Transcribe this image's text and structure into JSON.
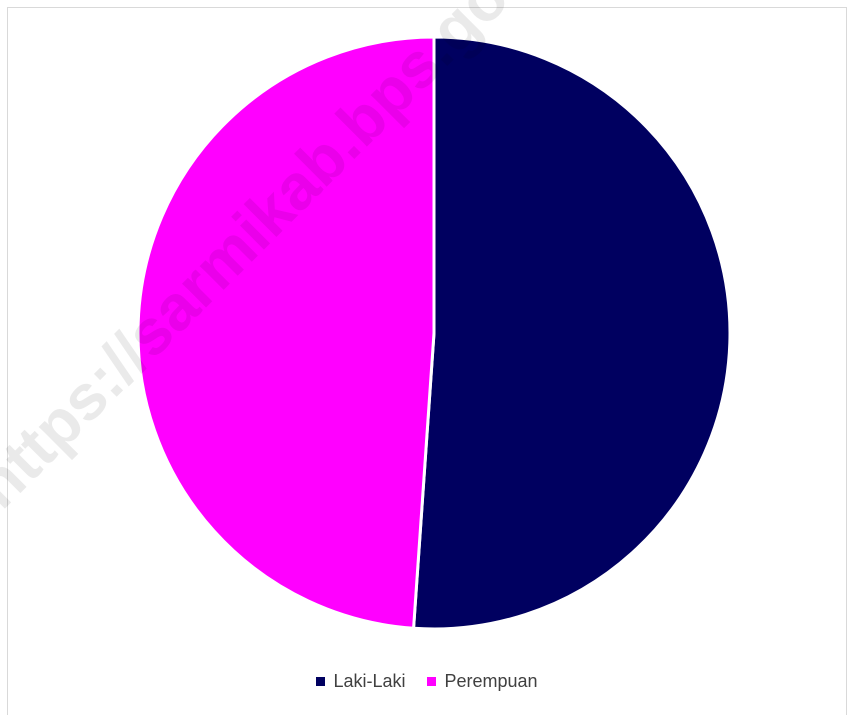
{
  "chart_data": {
    "type": "pie",
    "categories": [
      "Laki-Laki",
      "Perempuan"
    ],
    "values": [
      51.1,
      48.9
    ],
    "colors": [
      "#000060",
      "#ff00ff"
    ],
    "title": "",
    "legend": "bottom-center"
  },
  "watermark": "https://sarmikab.bps.go.id"
}
